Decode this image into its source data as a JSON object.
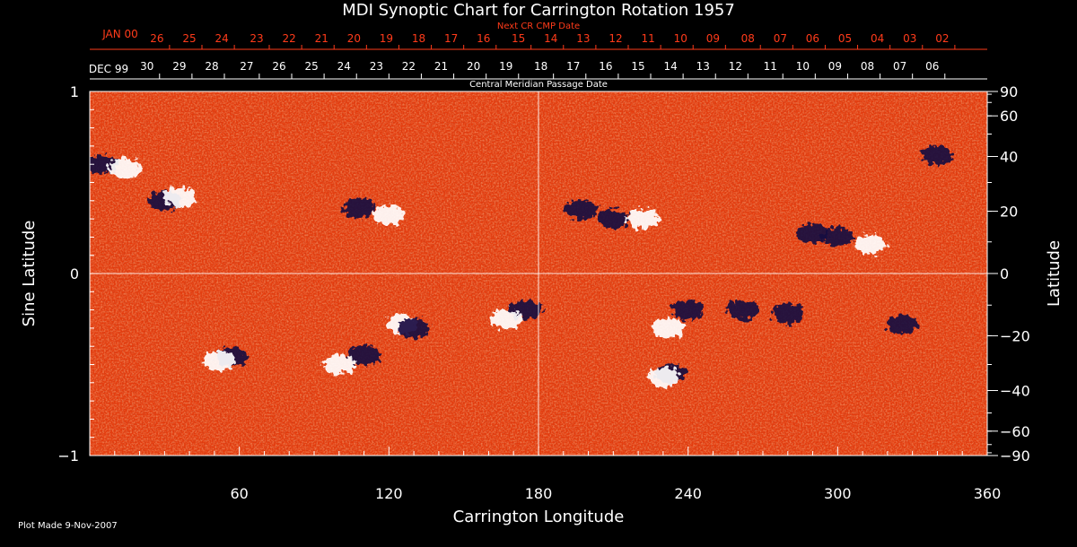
{
  "chart_data": {
    "type": "heatmap",
    "title": "MDI Synoptic Chart for Carrington Rotation 1957",
    "xlabel": "Carrington Longitude",
    "ylabel_left": "Sine Latitude",
    "ylabel_right": "Latitude",
    "xlim": [
      0,
      360
    ],
    "ylim": [
      -1,
      1
    ],
    "x_ticks": [
      60,
      120,
      180,
      240,
      300,
      360
    ],
    "y_ticks_left": [
      -1,
      0,
      1
    ],
    "y_ticks_right_labels": [
      "90",
      "60",
      "40",
      "20",
      "0",
      "−20",
      "−40",
      "−60",
      "−90"
    ],
    "y_ticks_right_values": [
      90,
      60,
      40,
      20,
      0,
      -20,
      -40,
      -60,
      -90
    ],
    "top_axis_label": "Central Meridian Passage Date",
    "top_axis_month_label": "DEC 99",
    "top_axis_dates": [
      {
        "label": "30",
        "lon": 28
      },
      {
        "label": "29",
        "lon": 41
      },
      {
        "label": "28",
        "lon": 54
      },
      {
        "label": "27",
        "lon": 68
      },
      {
        "label": "26",
        "lon": 81
      },
      {
        "label": "25",
        "lon": 94
      },
      {
        "label": "24",
        "lon": 107
      },
      {
        "label": "23",
        "lon": 120
      },
      {
        "label": "22",
        "lon": 133
      },
      {
        "label": "21",
        "lon": 146
      },
      {
        "label": "20",
        "lon": 159
      },
      {
        "label": "19",
        "lon": 172
      },
      {
        "label": "18",
        "lon": 186
      },
      {
        "label": "17",
        "lon": 199
      },
      {
        "label": "16",
        "lon": 212
      },
      {
        "label": "15",
        "lon": 225
      },
      {
        "label": "14",
        "lon": 238
      },
      {
        "label": "13",
        "lon": 251
      },
      {
        "label": "12",
        "lon": 264
      },
      {
        "label": "11",
        "lon": 278
      },
      {
        "label": "10",
        "lon": 291
      },
      {
        "label": "09",
        "lon": 304
      },
      {
        "label": "08",
        "lon": 317
      },
      {
        "label": "07",
        "lon": 330
      },
      {
        "label": "06",
        "lon": 343
      }
    ],
    "next_cr_axis_label": "Next CR CMP Date",
    "next_cr_month_label": "JAN 00",
    "next_cr_dates": [
      {
        "label": "26",
        "lon": 32
      },
      {
        "label": "25",
        "lon": 45
      },
      {
        "label": "24",
        "lon": 58
      },
      {
        "label": "23",
        "lon": 72
      },
      {
        "label": "22",
        "lon": 85
      },
      {
        "label": "21",
        "lon": 98
      },
      {
        "label": "20",
        "lon": 111
      },
      {
        "label": "19",
        "lon": 124
      },
      {
        "label": "18",
        "lon": 137
      },
      {
        "label": "17",
        "lon": 150
      },
      {
        "label": "16",
        "lon": 163
      },
      {
        "label": "15",
        "lon": 177
      },
      {
        "label": "14",
        "lon": 190
      },
      {
        "label": "13",
        "lon": 203
      },
      {
        "label": "12",
        "lon": 216
      },
      {
        "label": "11",
        "lon": 229
      },
      {
        "label": "10",
        "lon": 242
      },
      {
        "label": "09",
        "lon": 255
      },
      {
        "label": "08",
        "lon": 269
      },
      {
        "label": "07",
        "lon": 282
      },
      {
        "label": "06",
        "lon": 295
      },
      {
        "label": "05",
        "lon": 308
      },
      {
        "label": "04",
        "lon": 321
      },
      {
        "label": "03",
        "lon": 334
      },
      {
        "label": "02",
        "lon": 347
      }
    ],
    "grid": true,
    "gridlines": {
      "x": [
        180
      ],
      "y": [
        0
      ]
    },
    "colors": {
      "positive": "#ffffff",
      "background_field": "#e84010",
      "negative": "#1a0a40",
      "next_cr": "#ff3b1a"
    },
    "active_regions": [
      {
        "lon": 5,
        "sinlat": 0.6,
        "polarity": "negative"
      },
      {
        "lon": 14,
        "sinlat": 0.58,
        "polarity": "positive"
      },
      {
        "lon": 30,
        "sinlat": 0.4,
        "polarity": "negative"
      },
      {
        "lon": 36,
        "sinlat": 0.42,
        "polarity": "positive"
      },
      {
        "lon": 108,
        "sinlat": 0.36,
        "polarity": "negative"
      },
      {
        "lon": 120,
        "sinlat": 0.32,
        "polarity": "positive"
      },
      {
        "lon": 197,
        "sinlat": 0.35,
        "polarity": "negative"
      },
      {
        "lon": 210,
        "sinlat": 0.3,
        "polarity": "negative"
      },
      {
        "lon": 222,
        "sinlat": 0.3,
        "polarity": "positive"
      },
      {
        "lon": 290,
        "sinlat": 0.22,
        "polarity": "negative"
      },
      {
        "lon": 300,
        "sinlat": 0.2,
        "polarity": "negative"
      },
      {
        "lon": 313,
        "sinlat": 0.16,
        "polarity": "positive"
      },
      {
        "lon": 340,
        "sinlat": 0.65,
        "polarity": "negative"
      },
      {
        "lon": 175,
        "sinlat": -0.2,
        "polarity": "negative"
      },
      {
        "lon": 167,
        "sinlat": -0.25,
        "polarity": "positive"
      },
      {
        "lon": 125,
        "sinlat": -0.28,
        "polarity": "positive"
      },
      {
        "lon": 130,
        "sinlat": -0.3,
        "polarity": "negative"
      },
      {
        "lon": 110,
        "sinlat": -0.45,
        "polarity": "negative"
      },
      {
        "lon": 100,
        "sinlat": -0.5,
        "polarity": "positive"
      },
      {
        "lon": 57,
        "sinlat": -0.46,
        "polarity": "negative"
      },
      {
        "lon": 52,
        "sinlat": -0.48,
        "polarity": "positive"
      },
      {
        "lon": 232,
        "sinlat": -0.3,
        "polarity": "positive"
      },
      {
        "lon": 240,
        "sinlat": -0.2,
        "polarity": "negative"
      },
      {
        "lon": 262,
        "sinlat": -0.2,
        "polarity": "negative"
      },
      {
        "lon": 280,
        "sinlat": -0.22,
        "polarity": "negative"
      },
      {
        "lon": 233,
        "sinlat": -0.55,
        "polarity": "negative"
      },
      {
        "lon": 230,
        "sinlat": -0.57,
        "polarity": "positive"
      },
      {
        "lon": 326,
        "sinlat": -0.28,
        "polarity": "negative"
      }
    ]
  },
  "footer": {
    "plot_made": "Plot Made  9-Nov-2007"
  }
}
